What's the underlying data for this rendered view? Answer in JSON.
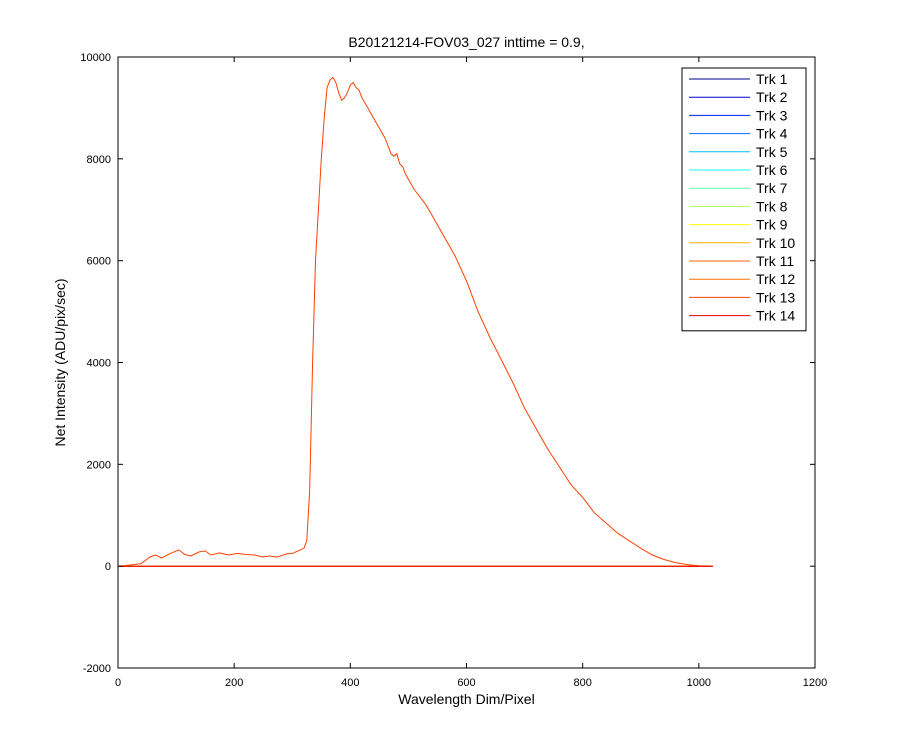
{
  "chart_data": {
    "type": "line",
    "title": "B20121214-FOV03_027 inttime = 0.9,",
    "xlabel": "Wavelength Dim/Pixel",
    "ylabel": "Net Intensity (ADU/pix/sec)",
    "xlim": [
      0,
      1200
    ],
    "ylim": [
      -2000,
      10000
    ],
    "x_ticks": [
      0,
      200,
      400,
      600,
      800,
      1000,
      1200
    ],
    "y_ticks": [
      -2000,
      0,
      2000,
      4000,
      6000,
      8000,
      10000
    ],
    "grid": false,
    "legend_position": "top-right",
    "series": [
      {
        "name": "Trk 1",
        "color": "#00008f",
        "x": [
          0,
          1024
        ],
        "y": [
          0,
          0
        ]
      },
      {
        "name": "Trk 2",
        "color": "#0000d6",
        "x": [
          0,
          1024
        ],
        "y": [
          0,
          0
        ]
      },
      {
        "name": "Trk 3",
        "color": "#0020ff",
        "x": [
          0,
          1024
        ],
        "y": [
          0,
          0
        ]
      },
      {
        "name": "Trk 4",
        "color": "#0070ff",
        "x": [
          0,
          1024
        ],
        "y": [
          0,
          0
        ]
      },
      {
        "name": "Trk 5",
        "color": "#00c0ff",
        "x": [
          0,
          1024
        ],
        "y": [
          0,
          0
        ]
      },
      {
        "name": "Trk 6",
        "color": "#10ffef",
        "x": [
          0,
          1024
        ],
        "y": [
          0,
          0
        ]
      },
      {
        "name": "Trk 7",
        "color": "#60ffa0",
        "x": [
          0,
          1024
        ],
        "y": [
          0,
          0
        ]
      },
      {
        "name": "Trk 8",
        "color": "#b0ff50",
        "x": [
          0,
          1024
        ],
        "y": [
          0,
          0
        ]
      },
      {
        "name": "Trk 9",
        "color": "#ffff00",
        "x": [
          0,
          1024
        ],
        "y": [
          0,
          0
        ]
      },
      {
        "name": "Trk 10",
        "color": "#ffb000",
        "x": [
          0,
          1024
        ],
        "y": [
          0,
          0
        ]
      },
      {
        "name": "Trk 11",
        "color": "#ff6000",
        "x": [
          0,
          1024
        ],
        "y": [
          0,
          0
        ]
      },
      {
        "name": "Trk 12",
        "color": "#ff7000",
        "x": [
          0,
          1024
        ],
        "y": [
          0,
          0
        ]
      },
      {
        "name": "Trk 13",
        "color": "#ff4000",
        "x": [
          0,
          20,
          40,
          55,
          65,
          75,
          90,
          105,
          115,
          125,
          140,
          150,
          160,
          175,
          190,
          205,
          220,
          235,
          250,
          260,
          275,
          290,
          300,
          310,
          320,
          325,
          330,
          335,
          340,
          345,
          350,
          355,
          360,
          365,
          370,
          375,
          380,
          385,
          390,
          395,
          400,
          405,
          410,
          415,
          420,
          430,
          440,
          450,
          460,
          470,
          475,
          480,
          485,
          490,
          495,
          500,
          510,
          520,
          530,
          540,
          550,
          560,
          570,
          580,
          590,
          600,
          620,
          640,
          660,
          680,
          700,
          720,
          740,
          760,
          780,
          800,
          820,
          840,
          860,
          880,
          900,
          920,
          940,
          960,
          980,
          1000,
          1010,
          1024
        ],
        "y": [
          0,
          20,
          50,
          180,
          220,
          160,
          250,
          320,
          230,
          200,
          280,
          300,
          220,
          260,
          220,
          250,
          230,
          220,
          180,
          200,
          180,
          240,
          250,
          300,
          350,
          500,
          1500,
          4000,
          6000,
          7000,
          8000,
          8800,
          9400,
          9550,
          9600,
          9500,
          9300,
          9150,
          9200,
          9300,
          9450,
          9500,
          9400,
          9350,
          9200,
          9000,
          8800,
          8600,
          8400,
          8100,
          8050,
          8100,
          7900,
          7850,
          7700,
          7600,
          7400,
          7250,
          7100,
          6900,
          6700,
          6500,
          6300,
          6100,
          5850,
          5600,
          5000,
          4500,
          4050,
          3600,
          3100,
          2700,
          2300,
          1950,
          1600,
          1350,
          1050,
          850,
          650,
          500,
          350,
          220,
          130,
          70,
          30,
          10,
          5,
          0
        ]
      },
      {
        "name": "Trk 14",
        "color": "#e80000",
        "x": [
          0,
          1024
        ],
        "y": [
          0,
          0
        ]
      }
    ]
  }
}
